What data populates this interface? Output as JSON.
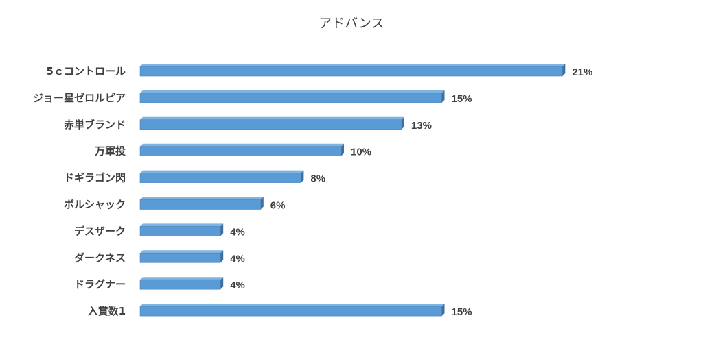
{
  "chart_data": {
    "type": "bar",
    "orientation": "horizontal",
    "title": "アドバンス",
    "categories": [
      "5ｃコントロール",
      "ジョー星ゼロルピア",
      "赤単ブランド",
      "万軍投",
      "ドギラゴン閃",
      "ボルシャック",
      "デスザーク",
      "ダークネス",
      "ドラグナー",
      "入賞数1"
    ],
    "values": [
      21,
      15,
      13,
      10,
      8,
      6,
      4,
      4,
      4,
      15
    ],
    "value_labels": [
      "21%",
      "15%",
      "13%",
      "10%",
      "8%",
      "6%",
      "4%",
      "4%",
      "4%",
      "15%"
    ],
    "unit": "%",
    "xlim": [
      0,
      25
    ],
    "grid": false,
    "legend": "none",
    "style": "3d-bar",
    "colors": {
      "bar_front": "#5b9bd5",
      "bar_top": "#7fb3e3",
      "bar_side": "#3f6f9e",
      "text": "#404040",
      "border": "#d9d9d9"
    }
  }
}
